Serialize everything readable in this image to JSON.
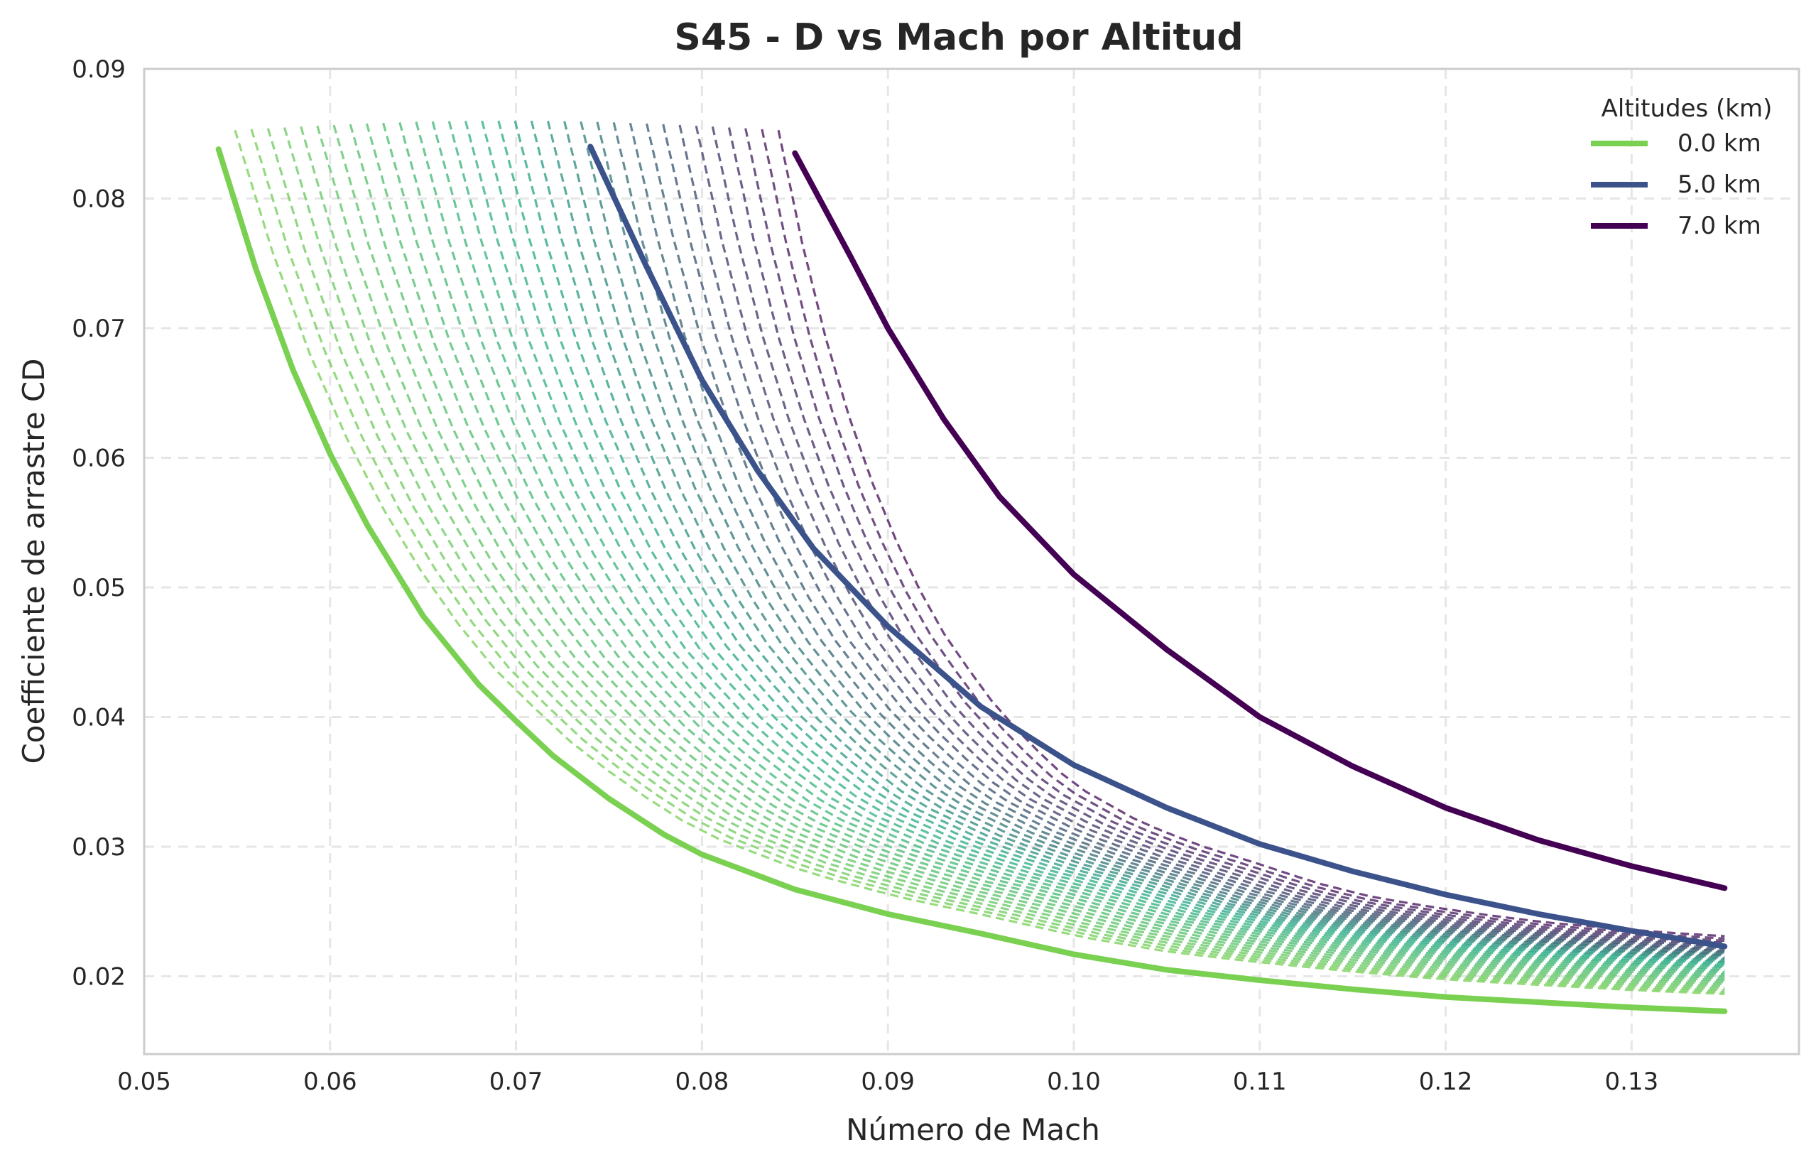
{
  "chart_data": {
    "type": "line",
    "title": "S45 - D vs Mach por Altitud",
    "xlabel": "Número de Mach",
    "ylabel": "Coefficiente de arrastre CD",
    "xlim": [
      0.05,
      0.139
    ],
    "ylim": [
      0.014,
      0.09
    ],
    "xticks": [
      "0.05",
      "0.06",
      "0.07",
      "0.08",
      "0.09",
      "0.10",
      "0.11",
      "0.12",
      "0.13"
    ],
    "yticks": [
      "0.02",
      "0.03",
      "0.04",
      "0.05",
      "0.06",
      "0.07",
      "0.08",
      "0.09"
    ],
    "grid": true,
    "legend": {
      "title": "Altitudes (km)",
      "placement": "top-right"
    },
    "series": [
      {
        "name": "0.0 km",
        "color": "#7ad151",
        "style": "solid",
        "x": [
          0.054,
          0.056,
          0.058,
          0.06,
          0.062,
          0.065,
          0.068,
          0.07,
          0.072,
          0.075,
          0.078,
          0.08,
          0.085,
          0.09,
          0.095,
          0.1,
          0.105,
          0.11,
          0.115,
          0.12,
          0.125,
          0.13,
          0.135
        ],
        "y": [
          0.0838,
          0.0746,
          0.0668,
          0.0603,
          0.0548,
          0.0478,
          0.0425,
          0.0397,
          0.037,
          0.0337,
          0.0309,
          0.0294,
          0.0267,
          0.0248,
          0.0233,
          0.0217,
          0.0205,
          0.0197,
          0.019,
          0.0184,
          0.018,
          0.0176,
          0.0173
        ]
      },
      {
        "name": "5.0 km",
        "color": "#3b528b",
        "style": "solid",
        "x": [
          0.074,
          0.077,
          0.08,
          0.083,
          0.086,
          0.09,
          0.095,
          0.1,
          0.105,
          0.11,
          0.115,
          0.12,
          0.125,
          0.13,
          0.135
        ],
        "y": [
          0.084,
          0.0748,
          0.066,
          0.059,
          0.053,
          0.047,
          0.0408,
          0.0363,
          0.033,
          0.0302,
          0.0281,
          0.0263,
          0.0248,
          0.0235,
          0.0223
        ]
      },
      {
        "name": "7.0 km",
        "color": "#440154",
        "style": "solid",
        "x": [
          0.085,
          0.088,
          0.09,
          0.093,
          0.096,
          0.1,
          0.105,
          0.11,
          0.115,
          0.12,
          0.125,
          0.13,
          0.135
        ],
        "y": [
          0.0835,
          0.0755,
          0.07,
          0.063,
          0.057,
          0.051,
          0.0452,
          0.04,
          0.0362,
          0.033,
          0.0305,
          0.0285,
          0.0268
        ]
      }
    ],
    "intermediate_curves": {
      "style": "dashed",
      "count": 34,
      "color_start": "#7ad151",
      "color_mid": "#3b528b",
      "color_end": "#440154"
    }
  }
}
